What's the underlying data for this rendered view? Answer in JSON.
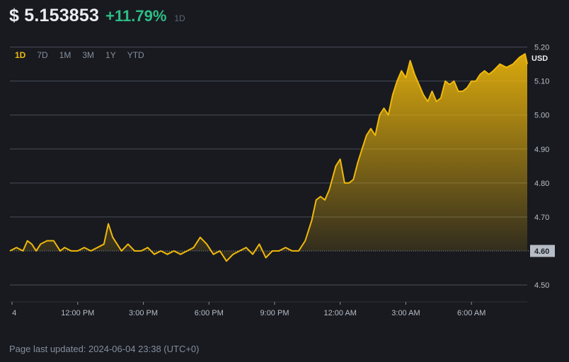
{
  "header": {
    "price": "$ 5.153853",
    "change": "+11.79%",
    "period": "1D",
    "change_color": "#2ebd85"
  },
  "ranges": [
    {
      "label": "1D",
      "active": true
    },
    {
      "label": "7D",
      "active": false
    },
    {
      "label": "1M",
      "active": false
    },
    {
      "label": "3M",
      "active": false
    },
    {
      "label": "1Y",
      "active": false
    },
    {
      "label": "YTD",
      "active": false
    }
  ],
  "footer": {
    "updated": "Page last updated: 2024-06-04 23:38 (UTC+0)"
  },
  "chart_data": {
    "type": "area",
    "currency_label": "USD",
    "baseline_value": 4.6,
    "baseline_label": "4.60",
    "ylim": [
      4.45,
      5.22
    ],
    "yticks": [
      {
        "v": 5.2,
        "label": "5.20"
      },
      {
        "v": 5.1,
        "label": "5.10"
      },
      {
        "v": 5.0,
        "label": "5.00"
      },
      {
        "v": 4.9,
        "label": "4.90"
      },
      {
        "v": 4.8,
        "label": "4.80"
      },
      {
        "v": 4.7,
        "label": "4.70"
      },
      {
        "v": 4.6,
        "label": "4.60"
      },
      {
        "v": 4.5,
        "label": "4.50"
      }
    ],
    "xlim": [
      -0.1,
      23.55
    ],
    "xticks": [
      {
        "v": 0,
        "label": "4"
      },
      {
        "v": 3,
        "label": "12:00 PM"
      },
      {
        "v": 6,
        "label": "3:00 PM"
      },
      {
        "v": 9,
        "label": "6:00 PM"
      },
      {
        "v": 12,
        "label": "9:00 PM"
      },
      {
        "v": 15,
        "label": "12:00 AM"
      },
      {
        "v": 18,
        "label": "3:00 AM"
      },
      {
        "v": 21,
        "label": "6:00 AM"
      }
    ],
    "line_color": "#f0b90b",
    "x": [
      -0.2,
      0.2,
      0.5,
      0.7,
      0.9,
      1.1,
      1.3,
      1.6,
      1.9,
      2.2,
      2.4,
      2.7,
      3.0,
      3.3,
      3.6,
      3.9,
      4.2,
      4.4,
      4.6,
      4.8,
      5.0,
      5.3,
      5.6,
      5.9,
      6.2,
      6.5,
      6.8,
      7.1,
      7.4,
      7.7,
      8.0,
      8.3,
      8.6,
      8.9,
      9.2,
      9.5,
      9.8,
      10.1,
      10.4,
      10.7,
      11.0,
      11.3,
      11.6,
      11.9,
      12.2,
      12.5,
      12.8,
      13.1,
      13.4,
      13.7,
      13.9,
      14.1,
      14.3,
      14.5,
      14.8,
      15.0,
      15.2,
      15.4,
      15.6,
      15.8,
      16.0,
      16.2,
      16.4,
      16.6,
      16.8,
      17.0,
      17.2,
      17.4,
      17.6,
      17.8,
      18.0,
      18.2,
      18.4,
      18.6,
      18.8,
      19.0,
      19.2,
      19.4,
      19.6,
      19.8,
      20.0,
      20.2,
      20.4,
      20.6,
      20.8,
      21.0,
      21.2,
      21.4,
      21.6,
      21.8,
      22.0,
      22.3,
      22.6,
      22.9,
      23.2,
      23.45,
      23.6
    ],
    "y": [
      4.6,
      4.61,
      4.6,
      4.63,
      4.62,
      4.6,
      4.62,
      4.63,
      4.63,
      4.6,
      4.61,
      4.6,
      4.6,
      4.61,
      4.6,
      4.61,
      4.62,
      4.68,
      4.64,
      4.62,
      4.6,
      4.62,
      4.6,
      4.6,
      4.61,
      4.59,
      4.6,
      4.59,
      4.6,
      4.59,
      4.6,
      4.61,
      4.64,
      4.62,
      4.59,
      4.6,
      4.57,
      4.59,
      4.6,
      4.61,
      4.59,
      4.62,
      4.58,
      4.6,
      4.6,
      4.61,
      4.6,
      4.6,
      4.63,
      4.69,
      4.75,
      4.76,
      4.75,
      4.78,
      4.85,
      4.87,
      4.8,
      4.8,
      4.81,
      4.86,
      4.9,
      4.94,
      4.96,
      4.94,
      5.0,
      5.02,
      5.0,
      5.06,
      5.1,
      5.13,
      5.11,
      5.16,
      5.12,
      5.09,
      5.06,
      5.04,
      5.07,
      5.04,
      5.05,
      5.1,
      5.09,
      5.1,
      5.07,
      5.07,
      5.08,
      5.1,
      5.1,
      5.12,
      5.13,
      5.12,
      5.13,
      5.15,
      5.14,
      5.15,
      5.17,
      5.18,
      5.15
    ]
  }
}
